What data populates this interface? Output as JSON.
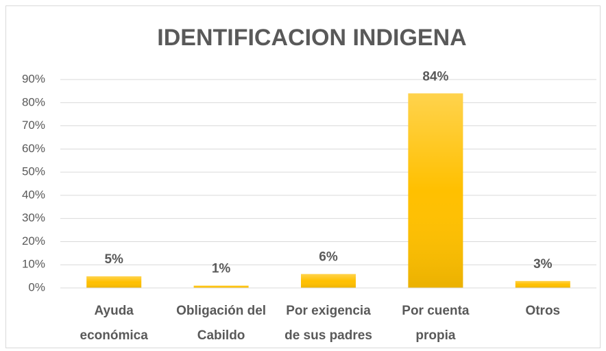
{
  "chart_data": {
    "type": "bar",
    "title": "IDENTIFICACION INDIGENA",
    "categories": [
      "Ayuda económica",
      "Obligación del Cabildo",
      "Por exigencia de sus padres",
      "Por cuenta propia",
      "Otros"
    ],
    "values": [
      5,
      1,
      6,
      84,
      3
    ],
    "value_labels": [
      "5%",
      "1%",
      "6%",
      "84%",
      "3%"
    ],
    "color": "#ffc000",
    "ylim": [
      0,
      90
    ],
    "yticks": [
      {
        "value": 0,
        "label": "0%"
      },
      {
        "value": 10,
        "label": "10%"
      },
      {
        "value": 20,
        "label": "20%"
      },
      {
        "value": 30,
        "label": "30%"
      },
      {
        "value": 40,
        "label": "40%"
      },
      {
        "value": 50,
        "label": "50%"
      },
      {
        "value": 60,
        "label": "60%"
      },
      {
        "value": 70,
        "label": "70%"
      },
      {
        "value": 80,
        "label": "80%"
      },
      {
        "value": 90,
        "label": "90%"
      }
    ],
    "grid": true
  }
}
